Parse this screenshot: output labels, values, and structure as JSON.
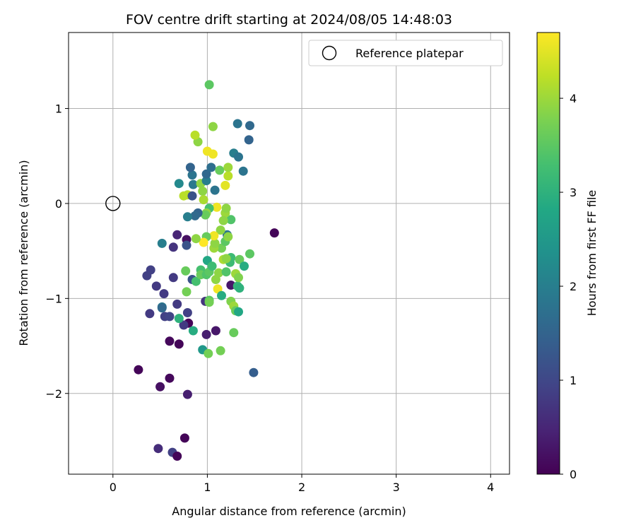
{
  "chart_data": {
    "type": "scatter",
    "title": "FOV centre drift starting at 2024/08/05 14:48:03",
    "xlabel": "Angular distance from reference (arcmin)",
    "ylabel": "Rotation from reference (arcmin)",
    "xlim": [
      -0.47,
      4.2
    ],
    "ylim": [
      -2.85,
      1.8
    ],
    "xticks": [
      0,
      1,
      2,
      3,
      4
    ],
    "yticks": [
      -2,
      -1,
      0,
      1
    ],
    "grid": true,
    "legend": {
      "position": "top-right",
      "entries": [
        "Reference platepar"
      ]
    },
    "reference_point": {
      "label": "Reference platepar",
      "x": 0,
      "y": 0
    },
    "colorbar": {
      "label": "Hours from first FF file",
      "range": [
        0,
        4.7
      ],
      "ticks": [
        0,
        1,
        2,
        3,
        4
      ],
      "colormap": "viridis"
    },
    "points": [
      {
        "x": 0.27,
        "y": -1.75,
        "h": 0.05
      },
      {
        "x": 0.48,
        "y": -2.58,
        "h": 0.6
      },
      {
        "x": 0.63,
        "y": -2.62,
        "h": 0.9
      },
      {
        "x": 0.68,
        "y": -2.66,
        "h": 0.05
      },
      {
        "x": 0.76,
        "y": -2.47,
        "h": 0.05
      },
      {
        "x": 0.79,
        "y": -2.01,
        "h": 0.4
      },
      {
        "x": 0.5,
        "y": -1.93,
        "h": 0.2
      },
      {
        "x": 0.6,
        "y": -1.84,
        "h": 0.1
      },
      {
        "x": 0.6,
        "y": -1.45,
        "h": 0.1
      },
      {
        "x": 0.7,
        "y": -1.48,
        "h": 0.05
      },
      {
        "x": 0.8,
        "y": -1.26,
        "h": 0.05
      },
      {
        "x": 0.75,
        "y": -1.28,
        "h": 0.8
      },
      {
        "x": 0.55,
        "y": -1.19,
        "h": 0.9
      },
      {
        "x": 0.6,
        "y": -1.19,
        "h": 0.95
      },
      {
        "x": 0.39,
        "y": -1.16,
        "h": 0.8
      },
      {
        "x": 0.52,
        "y": -1.09,
        "h": 1.9
      },
      {
        "x": 0.52,
        "y": -1.1,
        "h": 1.6
      },
      {
        "x": 0.7,
        "y": -1.21,
        "h": 3.0
      },
      {
        "x": 0.68,
        "y": -1.06,
        "h": 0.8
      },
      {
        "x": 0.79,
        "y": -1.15,
        "h": 0.9
      },
      {
        "x": 0.85,
        "y": -1.34,
        "h": 2.9
      },
      {
        "x": 0.99,
        "y": -1.38,
        "h": 0.4
      },
      {
        "x": 1.09,
        "y": -1.34,
        "h": 0.3
      },
      {
        "x": 0.95,
        "y": -1.54,
        "h": 2.5
      },
      {
        "x": 1.01,
        "y": -1.58,
        "h": 3.7
      },
      {
        "x": 1.14,
        "y": -1.55,
        "h": 3.7
      },
      {
        "x": 1.28,
        "y": -1.36,
        "h": 3.6
      },
      {
        "x": 1.49,
        "y": -1.78,
        "h": 1.4
      },
      {
        "x": 0.36,
        "y": -0.76,
        "h": 0.9
      },
      {
        "x": 0.4,
        "y": -0.7,
        "h": 0.9
      },
      {
        "x": 0.46,
        "y": -0.87,
        "h": 0.8
      },
      {
        "x": 0.54,
        "y": -0.95,
        "h": 0.8
      },
      {
        "x": 0.64,
        "y": -0.78,
        "h": 0.8
      },
      {
        "x": 0.64,
        "y": -0.46,
        "h": 0.7
      },
      {
        "x": 0.68,
        "y": -0.33,
        "h": 0.5
      },
      {
        "x": 0.52,
        "y": -0.42,
        "h": 2.0
      },
      {
        "x": 0.78,
        "y": -0.38,
        "h": 0.2
      },
      {
        "x": 0.78,
        "y": -0.44,
        "h": 1.2
      },
      {
        "x": 0.77,
        "y": -0.71,
        "h": 3.6
      },
      {
        "x": 0.78,
        "y": -0.93,
        "h": 3.7
      },
      {
        "x": 0.84,
        "y": -0.8,
        "h": 1.2
      },
      {
        "x": 0.88,
        "y": -0.82,
        "h": 3.3
      },
      {
        "x": 0.93,
        "y": -0.7,
        "h": 3.3
      },
      {
        "x": 0.93,
        "y": -0.75,
        "h": 3.6
      },
      {
        "x": 0.99,
        "y": -0.75,
        "h": 3.4
      },
      {
        "x": 1.02,
        "y": -0.72,
        "h": 3.5
      },
      {
        "x": 1.0,
        "y": -0.6,
        "h": 2.8
      },
      {
        "x": 1.05,
        "y": -0.66,
        "h": 3.2
      },
      {
        "x": 0.98,
        "y": -1.03,
        "h": 0.7
      },
      {
        "x": 1.02,
        "y": -1.02,
        "h": 3.5
      },
      {
        "x": 1.02,
        "y": -1.04,
        "h": 3.7
      },
      {
        "x": 1.09,
        "y": -0.8,
        "h": 3.9
      },
      {
        "x": 1.12,
        "y": -0.73,
        "h": 3.9
      },
      {
        "x": 1.11,
        "y": -0.9,
        "h": 4.6
      },
      {
        "x": 1.15,
        "y": -0.97,
        "h": 2.9
      },
      {
        "x": 1.25,
        "y": -0.86,
        "h": 0.3
      },
      {
        "x": 1.25,
        "y": -1.03,
        "h": 3.8
      },
      {
        "x": 1.28,
        "y": -1.08,
        "h": 4.0
      },
      {
        "x": 1.3,
        "y": -1.13,
        "h": 3.6
      },
      {
        "x": 1.33,
        "y": -1.14,
        "h": 2.8
      },
      {
        "x": 1.32,
        "y": -0.87,
        "h": 3.1
      },
      {
        "x": 1.34,
        "y": -0.89,
        "h": 3.0
      },
      {
        "x": 1.3,
        "y": -0.74,
        "h": 4.0
      },
      {
        "x": 1.33,
        "y": -0.78,
        "h": 3.8
      },
      {
        "x": 1.2,
        "y": -0.72,
        "h": 3.4
      },
      {
        "x": 1.24,
        "y": -0.62,
        "h": 3.2
      },
      {
        "x": 1.25,
        "y": -0.57,
        "h": 3.2
      },
      {
        "x": 1.34,
        "y": -0.59,
        "h": 3.6
      },
      {
        "x": 1.39,
        "y": -0.66,
        "h": 2.9
      },
      {
        "x": 1.45,
        "y": -0.53,
        "h": 3.5
      },
      {
        "x": 1.71,
        "y": -0.31,
        "h": 0.05
      },
      {
        "x": 1.17,
        "y": -0.59,
        "h": 4.1
      },
      {
        "x": 1.2,
        "y": -0.58,
        "h": 3.9
      },
      {
        "x": 1.15,
        "y": -0.47,
        "h": 3.7
      },
      {
        "x": 1.19,
        "y": -0.4,
        "h": 3.5
      },
      {
        "x": 1.21,
        "y": -0.33,
        "h": 1.8
      },
      {
        "x": 1.22,
        "y": -0.35,
        "h": 3.9
      },
      {
        "x": 1.14,
        "y": -0.28,
        "h": 3.9
      },
      {
        "x": 1.07,
        "y": -0.47,
        "h": 4.0
      },
      {
        "x": 1.08,
        "y": -0.42,
        "h": 3.9
      },
      {
        "x": 1.07,
        "y": -0.34,
        "h": 4.6
      },
      {
        "x": 0.99,
        "y": -0.35,
        "h": 3.6
      },
      {
        "x": 0.96,
        "y": -0.41,
        "h": 4.7
      },
      {
        "x": 0.88,
        "y": -0.37,
        "h": 3.9
      },
      {
        "x": 1.25,
        "y": -0.17,
        "h": 3.4
      },
      {
        "x": 1.19,
        "y": -0.1,
        "h": 4.0
      },
      {
        "x": 1.2,
        "y": -0.05,
        "h": 3.9
      },
      {
        "x": 1.17,
        "y": -0.18,
        "h": 3.9
      },
      {
        "x": 1.1,
        "y": -0.04,
        "h": 4.6
      },
      {
        "x": 1.02,
        "y": -0.05,
        "h": 3.3
      },
      {
        "x": 0.99,
        "y": -0.1,
        "h": 3.9
      },
      {
        "x": 0.98,
        "y": -0.12,
        "h": 3.6
      },
      {
        "x": 0.9,
        "y": -0.1,
        "h": 1.5
      },
      {
        "x": 0.87,
        "y": -0.13,
        "h": 1.6
      },
      {
        "x": 0.79,
        "y": -0.14,
        "h": 2.0
      },
      {
        "x": 0.75,
        "y": 0.08,
        "h": 4.2
      },
      {
        "x": 0.79,
        "y": 0.09,
        "h": 4.2
      },
      {
        "x": 0.84,
        "y": 0.08,
        "h": 1.2
      },
      {
        "x": 0.7,
        "y": 0.21,
        "h": 2.2
      },
      {
        "x": 0.85,
        "y": 0.2,
        "h": 1.9
      },
      {
        "x": 0.93,
        "y": 0.21,
        "h": 3.9
      },
      {
        "x": 0.95,
        "y": 0.13,
        "h": 3.9
      },
      {
        "x": 0.96,
        "y": 0.04,
        "h": 4.1
      },
      {
        "x": 0.99,
        "y": 0.24,
        "h": 2.0
      },
      {
        "x": 0.99,
        "y": 0.31,
        "h": 1.6
      },
      {
        "x": 0.84,
        "y": 0.3,
        "h": 1.8
      },
      {
        "x": 0.82,
        "y": 0.38,
        "h": 1.5
      },
      {
        "x": 1.04,
        "y": 0.38,
        "h": 1.7
      },
      {
        "x": 1.08,
        "y": 0.14,
        "h": 1.8
      },
      {
        "x": 1.13,
        "y": 0.35,
        "h": 3.6
      },
      {
        "x": 1.19,
        "y": 0.19,
        "h": 4.5
      },
      {
        "x": 1.22,
        "y": 0.29,
        "h": 4.2
      },
      {
        "x": 1.22,
        "y": 0.38,
        "h": 4.0
      },
      {
        "x": 1.0,
        "y": 0.55,
        "h": 4.6
      },
      {
        "x": 1.06,
        "y": 0.52,
        "h": 4.6
      },
      {
        "x": 1.28,
        "y": 0.53,
        "h": 2.0
      },
      {
        "x": 1.33,
        "y": 0.49,
        "h": 1.8
      },
      {
        "x": 1.38,
        "y": 0.34,
        "h": 1.8
      },
      {
        "x": 0.9,
        "y": 0.65,
        "h": 3.9
      },
      {
        "x": 0.87,
        "y": 0.72,
        "h": 4.2
      },
      {
        "x": 1.06,
        "y": 0.81,
        "h": 3.9
      },
      {
        "x": 1.32,
        "y": 0.84,
        "h": 1.8
      },
      {
        "x": 1.45,
        "y": 0.82,
        "h": 1.6
      },
      {
        "x": 1.44,
        "y": 0.67,
        "h": 1.5
      },
      {
        "x": 1.02,
        "y": 1.25,
        "h": 3.5
      }
    ]
  }
}
